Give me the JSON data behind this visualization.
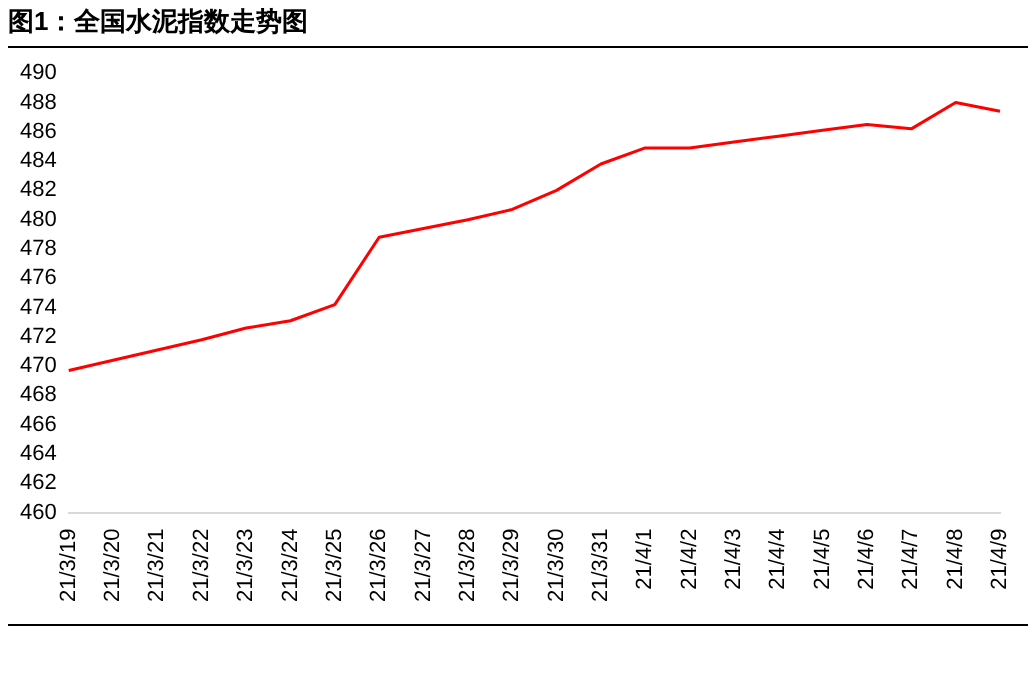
{
  "chart_data": {
    "type": "line",
    "title": "图1：全国水泥指数走势图",
    "categories": [
      "21/3/19",
      "21/3/20",
      "21/3/21",
      "21/3/22",
      "21/3/23",
      "21/3/24",
      "21/3/25",
      "21/3/26",
      "21/3/27",
      "21/3/28",
      "21/3/29",
      "21/3/30",
      "21/3/31",
      "21/4/1",
      "21/4/2",
      "21/4/3",
      "21/4/4",
      "21/4/5",
      "21/4/6",
      "21/4/7",
      "21/4/8",
      "21/4/9"
    ],
    "series": [
      {
        "color": "#ff0000",
        "values": [
          469.7,
          470.4,
          471.1,
          471.8,
          472.6,
          473.1,
          474.2,
          478.8,
          479.4,
          480.0,
          480.7,
          482.0,
          483.8,
          484.9,
          484.9,
          485.3,
          485.7,
          486.1,
          486.5,
          486.2,
          488.0,
          487.4
        ]
      }
    ],
    "ylim": [
      460,
      490
    ],
    "yticks": [
      460,
      462,
      464,
      466,
      468,
      470,
      472,
      474,
      476,
      478,
      480,
      482,
      484,
      486,
      488,
      490
    ],
    "grid": false,
    "legend": false,
    "marker": "none",
    "line_style": "solid"
  }
}
